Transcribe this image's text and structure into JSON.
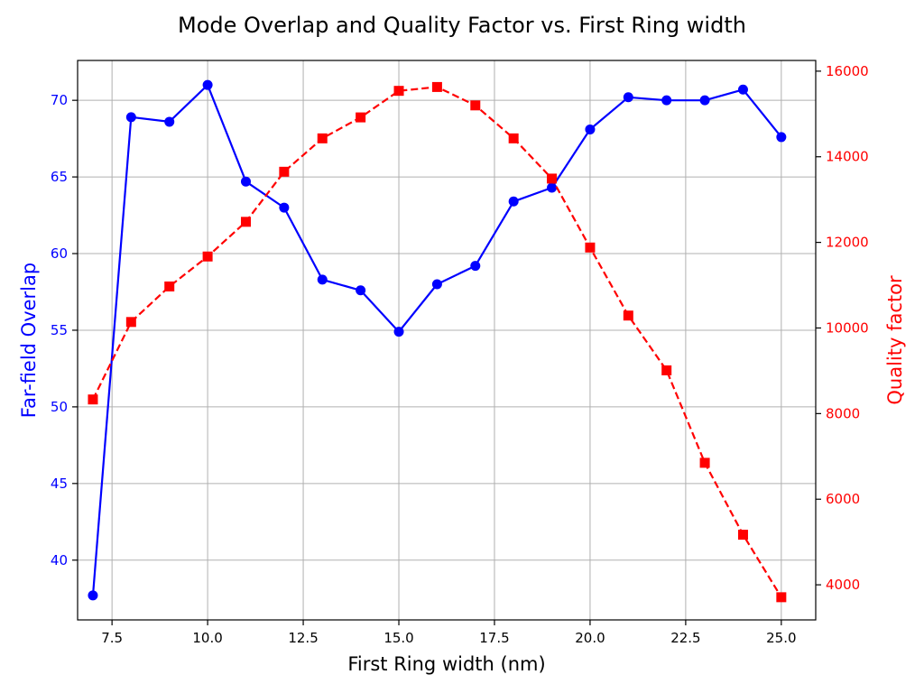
{
  "colors": {
    "overlap_series": "#0000ff",
    "quality_series": "#ff0000",
    "text": "#000000",
    "grid": "#b0b0b0"
  },
  "chart_data": {
    "type": "line",
    "title": "Mode Overlap and Quality Factor vs. First Ring width",
    "xlabel": "First Ring width (nm)",
    "ylabel_left": "Far-field Overlap",
    "ylabel_right": "Quality factor",
    "xlim": [
      6.6,
      25.9
    ],
    "ylim_left": [
      36.1,
      72.6
    ],
    "ylim_right": [
      3180,
      16250
    ],
    "grid": true,
    "x_ticks": [
      "7.5",
      "10.0",
      "12.5",
      "15.0",
      "17.5",
      "20.0",
      "22.5",
      "25.0"
    ],
    "y_left_ticks": [
      "40",
      "45",
      "50",
      "55",
      "60",
      "65",
      "70"
    ],
    "y_right_ticks": [
      "4000",
      "6000",
      "8000",
      "10000",
      "12000",
      "14000",
      "16000"
    ],
    "x": [
      7,
      8,
      9,
      10,
      11,
      12,
      13,
      14,
      15,
      16,
      17,
      18,
      19,
      20,
      21,
      22,
      23,
      24,
      25
    ],
    "series": [
      {
        "axis": "left",
        "style": "solid line, circle markers",
        "color": "#0000ff",
        "values": [
          37.7,
          68.9,
          68.6,
          71.0,
          64.7,
          63.0,
          58.3,
          57.6,
          54.9,
          58.0,
          59.2,
          63.4,
          64.3,
          68.1,
          70.2,
          70.0,
          70.0,
          70.7,
          67.6
        ]
      },
      {
        "axis": "right",
        "style": "dashed line, square markers",
        "color": "#ff0000",
        "values": [
          8330,
          10140,
          10970,
          11670,
          12480,
          13650,
          14430,
          14920,
          15540,
          15630,
          15200,
          14430,
          13490,
          11880,
          10290,
          9010,
          6850,
          5170,
          3710
        ]
      }
    ]
  }
}
